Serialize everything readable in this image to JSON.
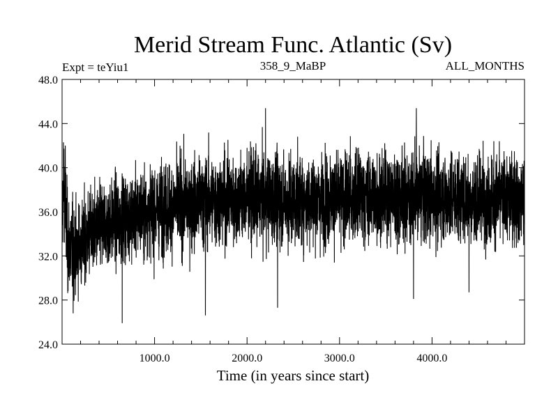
{
  "chart_data": {
    "type": "line",
    "title": "Merid Stream Func. Atlantic (Sv)",
    "subtitle_left": "Expt = teYiu1",
    "subtitle_center": "358_9_MaBP",
    "subtitle_right": "ALL_MONTHS",
    "xlabel": "Time (in years since start)",
    "ylabel": "",
    "xlim": [
      0,
      5000
    ],
    "ylim": [
      24.0,
      48.0
    ],
    "x_ticks": [
      {
        "value": 1000,
        "label": "1000.0"
      },
      {
        "value": 2000,
        "label": "2000.0"
      },
      {
        "value": 3000,
        "label": "3000.0"
      },
      {
        "value": 4000,
        "label": "4000.0"
      }
    ],
    "y_ticks": [
      {
        "value": 24,
        "label": "24.0"
      },
      {
        "value": 28,
        "label": "28.0"
      },
      {
        "value": 32,
        "label": "32.0"
      },
      {
        "value": 36,
        "label": "36.0"
      },
      {
        "value": 40,
        "label": "40.0"
      },
      {
        "value": 44,
        "label": "44.0"
      },
      {
        "value": 48,
        "label": "48.0"
      }
    ],
    "series": [
      {
        "name": "Merid Stream Func. Atlantic",
        "color": "#000000",
        "description_points": [
          {
            "x": 0,
            "mean": 36.0,
            "amp": 3.0
          },
          {
            "x": 20,
            "mean": 38.5,
            "amp": 3.5
          },
          {
            "x": 60,
            "mean": 33.0,
            "amp": 3.5
          },
          {
            "x": 150,
            "mean": 32.5,
            "amp": 3.0
          },
          {
            "x": 300,
            "mean": 34.0,
            "amp": 3.0
          },
          {
            "x": 500,
            "mean": 35.0,
            "amp": 3.0
          },
          {
            "x": 800,
            "mean": 35.8,
            "amp": 3.0
          },
          {
            "x": 1200,
            "mean": 36.5,
            "amp": 3.2
          },
          {
            "x": 1600,
            "mean": 37.0,
            "amp": 3.2
          },
          {
            "x": 2000,
            "mean": 37.2,
            "amp": 3.2
          },
          {
            "x": 2500,
            "mean": 37.0,
            "amp": 3.2
          },
          {
            "x": 3000,
            "mean": 37.2,
            "amp": 3.2
          },
          {
            "x": 3500,
            "mean": 37.4,
            "amp": 3.2
          },
          {
            "x": 4000,
            "mean": 37.4,
            "amp": 3.2
          },
          {
            "x": 4500,
            "mean": 37.2,
            "amp": 3.2
          },
          {
            "x": 5000,
            "mean": 37.3,
            "amp": 3.2
          }
        ],
        "spikes": [
          {
            "x": 15,
            "value": 42.3
          },
          {
            "x": 35,
            "value": 42.0
          },
          {
            "x": 120,
            "value": 26.8
          },
          {
            "x": 650,
            "value": 25.9
          },
          {
            "x": 1550,
            "value": 26.6
          },
          {
            "x": 2200,
            "value": 45.4
          },
          {
            "x": 2330,
            "value": 27.3
          },
          {
            "x": 3830,
            "value": 45.4
          },
          {
            "x": 3800,
            "value": 28.1
          },
          {
            "x": 4400,
            "value": 28.7
          }
        ],
        "range_min": 25.9,
        "range_max": 45.4
      }
    ]
  }
}
